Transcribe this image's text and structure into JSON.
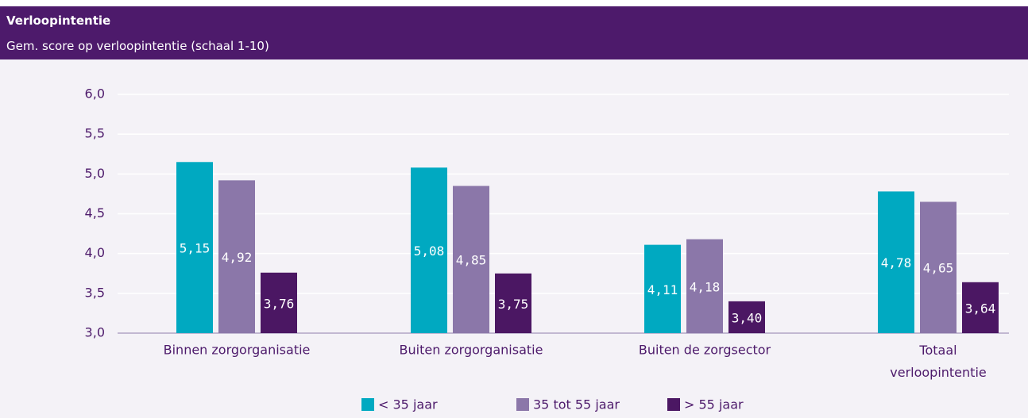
{
  "chart_data": {
    "type": "bar",
    "title": "Verloopintentie",
    "subtitle": "Gem. score  op verloopintentie (schaal 1-10)",
    "categories": [
      "Binnen zorgorganisatie",
      "Buiten zorgorganisatie",
      "Buiten de zorgsector",
      "Totaal\nverloopintentie"
    ],
    "series": [
      {
        "name": "< 35 jaar",
        "color": "#00a9c1",
        "values": [
          5.15,
          5.08,
          4.11,
          4.78
        ],
        "value_labels": [
          "5,15",
          "5,08",
          "4,11",
          "4,78"
        ]
      },
      {
        "name": "35 tot 55 jaar",
        "color": "#8b77a9",
        "values": [
          4.92,
          4.85,
          4.18,
          4.65
        ],
        "value_labels": [
          "4,92",
          "4,85",
          "4,18",
          "4,65"
        ]
      },
      {
        "name": "> 55 jaar",
        "color": "#4b1763",
        "values": [
          3.76,
          3.75,
          3.4,
          3.64
        ],
        "value_labels": [
          "3,76",
          "3,75",
          "3,40",
          "3,64"
        ]
      }
    ],
    "ylim": [
      3,
      6
    ],
    "yticks": [
      {
        "value": 3,
        "label": "3,0"
      },
      {
        "value": 3.5,
        "label": "3,5"
      },
      {
        "value": 4,
        "label": "4,0"
      },
      {
        "value": 4.5,
        "label": "4,5"
      },
      {
        "value": 5,
        "label": "5,0"
      },
      {
        "value": 5.5,
        "label": "5,5"
      },
      {
        "value": 6,
        "label": "6,0"
      }
    ],
    "grid": true,
    "legend": "bottom"
  }
}
